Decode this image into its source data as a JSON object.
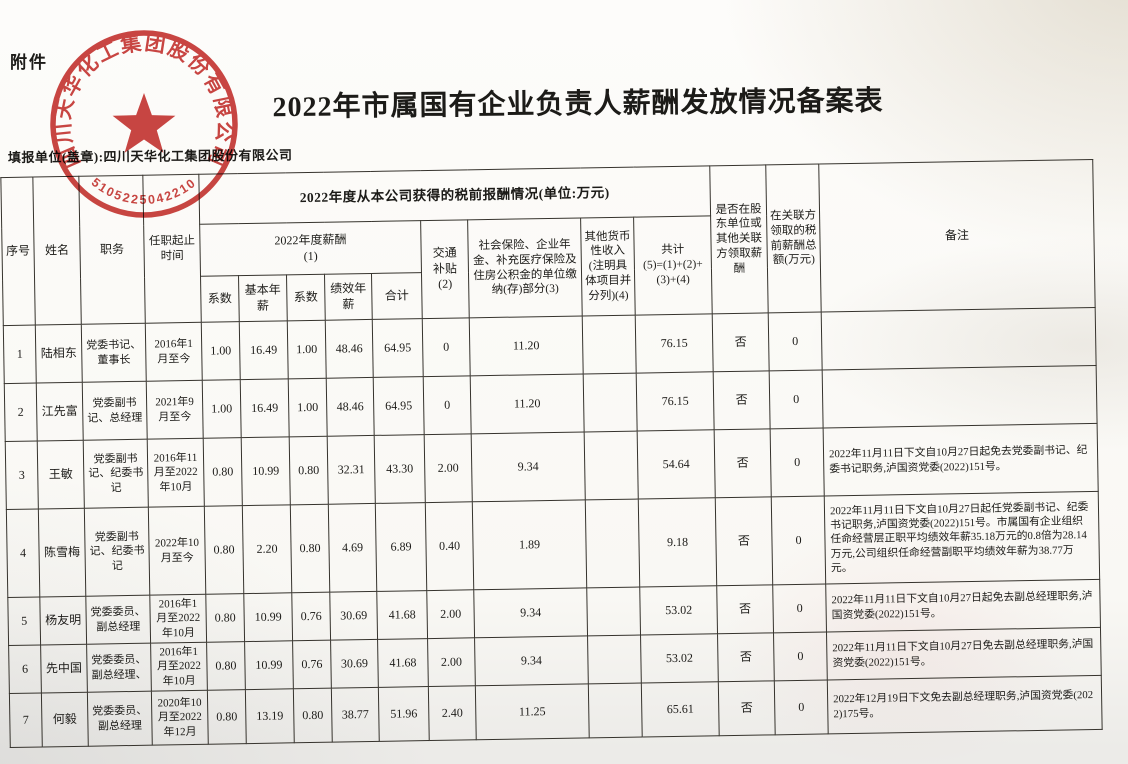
{
  "page": {
    "attachment_label": "附件",
    "title": "2022年市属国有企业负责人薪酬发放情况备案表",
    "filing_unit_line": "填报单位(盖章):四川天华化工集团股份有限公司"
  },
  "seal": {
    "company": "四川天华化工集团股份有限公司",
    "number": "5105225042210",
    "color": "#c5312e"
  },
  "colors": {
    "grid_ink": "#36332d",
    "paper": "#f9f8f4"
  },
  "table": {
    "headers": {
      "no": "序号",
      "name": "姓名",
      "position": "职务",
      "term": "任职起止时间",
      "pretax_span": "2022年度从本公司获得的税前报酬情况(单位:万元)",
      "salary_2022": "2022年度薪酬\n(1)",
      "coef1": "系数",
      "base": "基本年薪",
      "coef2": "系数",
      "perf": "绩效年薪",
      "subtotal": "合计",
      "transport": "交通\n补贴\n(2)",
      "social": "社会保险、企业年金、补充医疗保险及住房公积金的单位缴纳(存)部分(3)",
      "other": "其他货币性收入(注明具体项目并分列)(4)",
      "total": "共计\n(5)=(1)+(2)+(3)+(4)",
      "related_flag": "是否在股东单位或其他关联方领取薪酬",
      "related_amt": "在关联方领取的税前薪酬总额(万元)",
      "remark": "备注"
    },
    "rows": [
      {
        "no": "1",
        "name": "陆相东",
        "position": "党委书记、董事长",
        "term": "2016年1月至今",
        "coef1": "1.00",
        "base": "16.49",
        "coef2": "1.00",
        "perf": "48.46",
        "subtotal": "64.95",
        "transport": "0",
        "social": "11.20",
        "other": "",
        "total": "76.15",
        "flag": "否",
        "related": "0",
        "remark": ""
      },
      {
        "no": "2",
        "name": "江先富",
        "position": "党委副书记、总经理",
        "term": "2021年9月至今",
        "coef1": "1.00",
        "base": "16.49",
        "coef2": "1.00",
        "perf": "48.46",
        "subtotal": "64.95",
        "transport": "0",
        "social": "11.20",
        "other": "",
        "total": "76.15",
        "flag": "否",
        "related": "0",
        "remark": ""
      },
      {
        "no": "3",
        "name": "王敏",
        "position": "党委副书记、纪委书记",
        "term": "2016年11月至2022年10月",
        "coef1": "0.80",
        "base": "10.99",
        "coef2": "0.80",
        "perf": "32.31",
        "subtotal": "43.30",
        "transport": "2.00",
        "social": "9.34",
        "other": "",
        "total": "54.64",
        "flag": "否",
        "related": "0",
        "remark": "2022年11月11日下文自10月27日起免去党委副书记、纪委书记职务,泸国资党委(2022)151号。"
      },
      {
        "no": "4",
        "name": "陈雪梅",
        "position": "党委副书记、纪委书记",
        "term": "2022年10月至今",
        "coef1": "0.80",
        "base": "2.20",
        "coef2": "0.80",
        "perf": "4.69",
        "subtotal": "6.89",
        "transport": "0.40",
        "social": "1.89",
        "other": "",
        "total": "9.18",
        "flag": "否",
        "related": "0",
        "remark": "2022年11月11日下文自10月27日起任党委副书记、纪委书记职务,泸国资党委(2022)151号。市属国有企业组织任命经营层正职平均绩效年薪35.18万元的0.8倍为28.14万元,公司组织任命经营副职平均绩效年薪为38.77万元。"
      },
      {
        "no": "5",
        "name": "杨友明",
        "position": "党委委员、副总经理",
        "term": "2016年1月至2022年10月",
        "coef1": "0.80",
        "base": "10.99",
        "coef2": "0.76",
        "perf": "30.69",
        "subtotal": "41.68",
        "transport": "2.00",
        "social": "9.34",
        "other": "",
        "total": "53.02",
        "flag": "否",
        "related": "0",
        "remark": "2022年11月11日下文自10月27日起免去副总经理职务,泸国资党委(2022)151号。"
      },
      {
        "no": "6",
        "name": "先中国",
        "position": "党委委员、副总经理、",
        "term": "2016年1月至2022年10月",
        "coef1": "0.80",
        "base": "10.99",
        "coef2": "0.76",
        "perf": "30.69",
        "subtotal": "41.68",
        "transport": "2.00",
        "social": "9.34",
        "other": "",
        "total": "53.02",
        "flag": "否",
        "related": "0",
        "remark": "2022年11月11日下文自10月27日免去副总经理职务,泸国资党委(2022)151号。"
      },
      {
        "no": "7",
        "name": "何毅",
        "position": "党委委员、副总经理",
        "term": "2020年10月至2022年12月",
        "coef1": "0.80",
        "base": "13.19",
        "coef2": "0.80",
        "perf": "38.77",
        "subtotal": "51.96",
        "transport": "2.40",
        "social": "11.25",
        "other": "",
        "total": "65.61",
        "flag": "否",
        "related": "0",
        "remark": "2022年12月19日下文免去副总经理职务,泸国资党委(2022)175号。"
      }
    ]
  }
}
